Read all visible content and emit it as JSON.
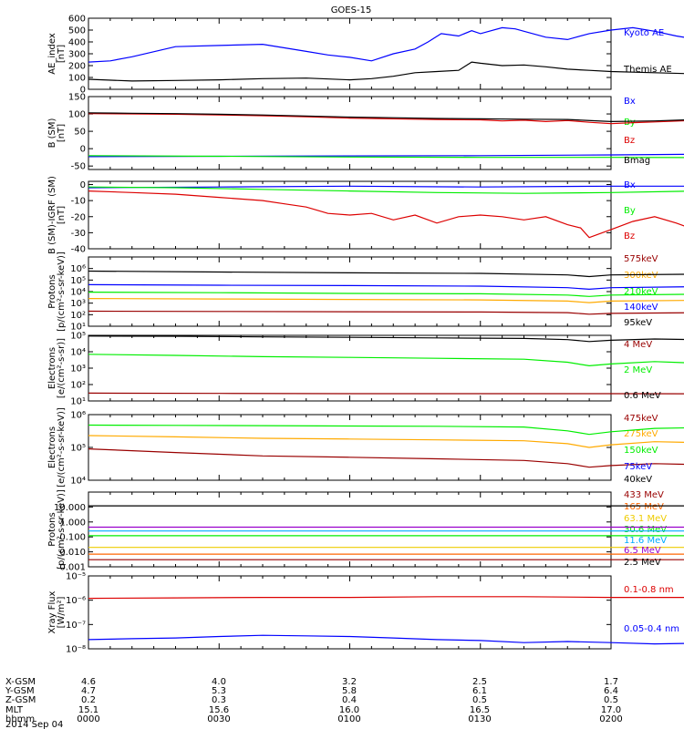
{
  "title": "GOES-15",
  "chart_data": [
    {
      "type": "line",
      "ylabel": [
        "AE_index",
        "[nT]"
      ],
      "ylim": [
        0,
        600
      ],
      "y_ticks": [
        "0",
        "100",
        "200",
        "300",
        "400",
        "500",
        "600"
      ],
      "series": [
        {
          "name": "Kyoto AE",
          "color": "#0000ff",
          "x": [
            0,
            5,
            10,
            20,
            30,
            40,
            50,
            55,
            60,
            65,
            70,
            75,
            78,
            81,
            85,
            88,
            90,
            95,
            98,
            100,
            105,
            110,
            115,
            120,
            125,
            130,
            135,
            140,
            145,
            150
          ],
          "y": [
            230,
            240,
            275,
            360,
            370,
            380,
            320,
            290,
            270,
            240,
            300,
            340,
            400,
            470,
            450,
            495,
            470,
            520,
            510,
            490,
            440,
            420,
            470,
            500,
            520,
            490,
            450,
            420,
            350,
            250
          ]
        },
        {
          "name": "Themis AE",
          "color": "#000000",
          "x": [
            0,
            10,
            20,
            30,
            40,
            50,
            60,
            65,
            70,
            75,
            80,
            85,
            88,
            90,
            95,
            100,
            105,
            110,
            115,
            120,
            130,
            140,
            150
          ],
          "y": [
            85,
            70,
            75,
            80,
            90,
            95,
            80,
            90,
            110,
            140,
            150,
            160,
            230,
            220,
            200,
            205,
            190,
            170,
            160,
            150,
            140,
            130,
            100
          ]
        }
      ]
    },
    {
      "type": "line",
      "ylabel": [
        "B (SM)",
        "[nT]"
      ],
      "ylim": [
        -60,
        150
      ],
      "y_ticks": [
        "-50",
        "0",
        "50",
        "100",
        "150"
      ],
      "series": [
        {
          "name": "Bx",
          "color": "#0000ff",
          "x": [
            0,
            30,
            60,
            90,
            120,
            150
          ],
          "y": [
            -23,
            -22,
            -21,
            -20,
            -18,
            -15
          ]
        },
        {
          "name": "By",
          "color": "#00ee00",
          "x": [
            0,
            30,
            60,
            90,
            120,
            150
          ],
          "y": [
            -20,
            -22,
            -24,
            -25,
            -25,
            -26
          ]
        },
        {
          "name": "Bz",
          "color": "#dd0000",
          "x": [
            0,
            10,
            20,
            30,
            40,
            50,
            60,
            70,
            80,
            90,
            95,
            100,
            105,
            110,
            115,
            120,
            125,
            130,
            140,
            150
          ],
          "y": [
            101,
            100,
            99,
            97,
            95,
            92,
            88,
            86,
            84,
            83,
            80,
            82,
            78,
            81,
            76,
            72,
            75,
            77,
            82,
            84
          ]
        },
        {
          "name": "Bmag",
          "color": "#000000",
          "x": [
            0,
            10,
            20,
            30,
            40,
            50,
            60,
            70,
            80,
            90,
            100,
            110,
            120,
            130,
            140,
            150
          ],
          "y": [
            103,
            102,
            101,
            99,
            97,
            94,
            91,
            89,
            87,
            86,
            85,
            84,
            78,
            80,
            84,
            88
          ]
        }
      ]
    },
    {
      "type": "line",
      "ylabel": [
        "B (SM)-IGRF (SM)",
        "[nT]"
      ],
      "ylim": [
        -40,
        2
      ],
      "y_ticks": [
        "-40",
        "-30",
        "-20",
        "-10",
        "0"
      ],
      "series": [
        {
          "name": "Bx",
          "color": "#0000ff",
          "x": [
            0,
            30,
            60,
            90,
            120,
            150
          ],
          "y": [
            -2,
            -1.5,
            -1,
            -1.5,
            -1,
            -1
          ]
        },
        {
          "name": "By",
          "color": "#00ee00",
          "x": [
            0,
            20,
            40,
            60,
            80,
            100,
            120,
            140,
            150
          ],
          "y": [
            -1.5,
            -2,
            -3,
            -4,
            -5,
            -5.5,
            -5,
            -4,
            -3
          ]
        },
        {
          "name": "Bz",
          "color": "#dd0000",
          "x": [
            0,
            10,
            20,
            30,
            40,
            45,
            50,
            55,
            60,
            65,
            70,
            75,
            80,
            85,
            90,
            95,
            100,
            105,
            110,
            113,
            115,
            120,
            125,
            130,
            135,
            140,
            145,
            150
          ],
          "y": [
            -4,
            -5,
            -6,
            -8,
            -10,
            -12,
            -14,
            -18,
            -19,
            -18,
            -22,
            -19,
            -24,
            -20,
            -19,
            -20,
            -22,
            -20,
            -25,
            -27,
            -33,
            -28,
            -23,
            -20,
            -24,
            -29,
            -25,
            -21
          ]
        }
      ]
    },
    {
      "type": "line",
      "ylabel": [
        "Protons",
        "[p/(cm²-s-sr-keV)]"
      ],
      "scale": "log",
      "ylim": [
        10,
        10000000
      ],
      "y_ticks": [
        "10¹",
        "10²",
        "10³",
        "10⁴",
        "10⁵",
        "10⁶"
      ],
      "series": [
        {
          "name": "575keV",
          "color": "#990000",
          "x": [
            0,
            30,
            60,
            90,
            110,
            115,
            120,
            150
          ],
          "y": [
            200,
            190,
            180,
            170,
            150,
            110,
            130,
            160
          ]
        },
        {
          "name": "300keV",
          "color": "#ffaa00",
          "x": [
            0,
            30,
            60,
            90,
            110,
            115,
            120,
            150
          ],
          "y": [
            2500,
            2300,
            2100,
            1900,
            1500,
            1100,
            1500,
            1900
          ]
        },
        {
          "name": "210keV",
          "color": "#00ee00",
          "x": [
            0,
            30,
            60,
            90,
            110,
            115,
            120,
            150
          ],
          "y": [
            9000,
            8000,
            7000,
            6500,
            5000,
            3800,
            5000,
            6500
          ]
        },
        {
          "name": "140keV",
          "color": "#0000ff",
          "x": [
            0,
            30,
            60,
            90,
            110,
            115,
            120,
            150
          ],
          "y": [
            40000,
            36000,
            33000,
            30000,
            22000,
            16000,
            22000,
            30000
          ]
        },
        {
          "name": "95keV",
          "color": "#000000",
          "x": [
            0,
            30,
            60,
            90,
            110,
            115,
            120,
            150
          ],
          "y": [
            600000,
            500000,
            420000,
            380000,
            280000,
            200000,
            280000,
            350000
          ]
        }
      ]
    },
    {
      "type": "line",
      "ylabel": [
        "Electrons",
        "[e/(cm²-s-sr)]"
      ],
      "scale": "log",
      "ylim": [
        10,
        100000
      ],
      "y_ticks": [
        "10¹",
        "10²",
        "10³",
        "10⁴",
        "10⁵"
      ],
      "series": [
        {
          "name": "4 MeV",
          "color": "#990000",
          "x": [
            0,
            30,
            60,
            90,
            120,
            150
          ],
          "y": [
            30,
            29,
            28,
            28,
            28,
            27
          ]
        },
        {
          "name": "2 MeV",
          "color": "#00ee00",
          "x": [
            0,
            20,
            40,
            60,
            80,
            100,
            110,
            115,
            120,
            130,
            140,
            150
          ],
          "y": [
            7000,
            6000,
            5000,
            4500,
            4000,
            3500,
            2300,
            1400,
            1800,
            2500,
            2000,
            2200
          ]
        },
        {
          "name": "0.6 MeV",
          "color": "#000000",
          "x": [
            0,
            20,
            40,
            60,
            80,
            100,
            110,
            115,
            120,
            130,
            140,
            150
          ],
          "y": [
            90000,
            88000,
            80000,
            75000,
            70000,
            65000,
            55000,
            42000,
            50000,
            60000,
            55000,
            58000
          ]
        }
      ]
    },
    {
      "type": "line",
      "ylabel": [
        "Electrons",
        "[e/(cm²-s-sr-keV)]"
      ],
      "scale": "log",
      "ylim": [
        10000,
        1000000
      ],
      "y_ticks": [
        "10⁴",
        "10⁵",
        "10⁶"
      ],
      "series": [
        {
          "name": "475keV",
          "color": "#990000",
          "x": [
            0,
            20,
            40,
            60,
            80,
            100,
            110,
            115,
            120,
            130,
            140,
            150
          ],
          "y": [
            90000,
            70000,
            55000,
            50000,
            45000,
            40000,
            32000,
            25000,
            28000,
            32000,
            30000,
            32000
          ]
        },
        {
          "name": "275keV",
          "color": "#ffaa00",
          "x": [
            0,
            20,
            40,
            60,
            80,
            100,
            110,
            115,
            120,
            130,
            140,
            150
          ],
          "y": [
            230000,
            210000,
            190000,
            180000,
            170000,
            160000,
            130000,
            100000,
            120000,
            150000,
            140000,
            150000
          ]
        },
        {
          "name": "150keV",
          "color": "#00ee00",
          "x": [
            0,
            20,
            40,
            60,
            80,
            100,
            110,
            115,
            120,
            130,
            140,
            150
          ],
          "y": [
            480000,
            470000,
            460000,
            450000,
            440000,
            420000,
            320000,
            250000,
            300000,
            380000,
            400000,
            550000
          ]
        },
        {
          "name": "75keV",
          "color": "#0000ff",
          "x": [],
          "y": []
        },
        {
          "name": "40keV",
          "color": "#000000",
          "x": [],
          "y": []
        }
      ]
    },
    {
      "type": "line",
      "ylabel": [
        "Protons",
        "[p/(cm²-s-sr-keV)]"
      ],
      "scale": "log",
      "ylim": [
        0.001,
        100
      ],
      "y_ticks": [
        "0.001",
        "0.010",
        "0.100",
        "1.000",
        "10.000"
      ],
      "series": [
        {
          "name": "433 MeV",
          "color": "#990000",
          "x": [
            0,
            150
          ],
          "y": [
            0.003,
            0.003
          ]
        },
        {
          "name": "165 MeV",
          "color": "#ff6600",
          "x": [
            0,
            150
          ],
          "y": [
            0.007,
            0.007
          ]
        },
        {
          "name": "63.1 MeV",
          "color": "#eecc00",
          "x": [
            0,
            150
          ],
          "y": [
            0.02,
            0.02
          ]
        },
        {
          "name": "30.6 MeV",
          "color": "#00ee00",
          "x": [
            0,
            150
          ],
          "y": [
            0.12,
            0.12
          ]
        },
        {
          "name": "11.6 MeV",
          "color": "#00aaff",
          "x": [
            0,
            150
          ],
          "y": [
            0.25,
            0.25
          ]
        },
        {
          "name": "6.5 MeV",
          "color": "#9900cc",
          "x": [
            0,
            150
          ],
          "y": [
            0.45,
            0.45
          ]
        },
        {
          "name": "2.5 MeV",
          "color": "#000000",
          "x": [
            0,
            150
          ],
          "y": [
            12,
            12
          ]
        }
      ]
    },
    {
      "type": "line",
      "ylabel": [
        "Xray Flux",
        "[W/m²]"
      ],
      "scale": "log",
      "ylim": [
        1e-08,
        1e-05
      ],
      "y_ticks": [
        "10⁻⁸",
        "10⁻⁷",
        "10⁻⁶",
        "10⁻⁵"
      ],
      "series": [
        {
          "name": "0.1-0.8 nm",
          "color": "#dd0000",
          "x": [
            0,
            20,
            40,
            60,
            80,
            100,
            120,
            150
          ],
          "y": [
            1.2e-06,
            1.25e-06,
            1.3e-06,
            1.3e-06,
            1.4e-06,
            1.4e-06,
            1.3e-06,
            1.3e-06
          ]
        },
        {
          "name": "0.05-0.4 nm",
          "color": "#0000ff",
          "x": [
            0,
            10,
            20,
            30,
            40,
            50,
            60,
            70,
            80,
            90,
            100,
            110,
            120,
            130,
            140,
            150
          ],
          "y": [
            2.4e-08,
            2.6e-08,
            2.8e-08,
            3.2e-08,
            3.6e-08,
            3.4e-08,
            3.2e-08,
            2.8e-08,
            2.4e-08,
            2.2e-08,
            1.8e-08,
            2e-08,
            1.8e-08,
            1.6e-08,
            1.7e-08,
            1.4e-08
          ]
        }
      ]
    }
  ],
  "footer": {
    "row_labels": [
      "X-GSM",
      "Y-GSM",
      "Z-GSM",
      "MLT",
      "hhmm"
    ],
    "date": "2014 Sep 04",
    "columns": [
      [
        "4.6",
        "4.7",
        "0.2",
        "15.1",
        "0000"
      ],
      [
        "4.0",
        "5.3",
        "0.3",
        "15.6",
        "0030"
      ],
      [
        "3.2",
        "5.8",
        "0.4",
        "16.0",
        "0100"
      ],
      [
        "2.5",
        "6.1",
        "0.5",
        "16.5",
        "0130"
      ],
      [
        "1.7",
        "6.4",
        "0.5",
        "17.0",
        "0200"
      ]
    ]
  },
  "x_range_minutes": [
    0,
    120
  ]
}
